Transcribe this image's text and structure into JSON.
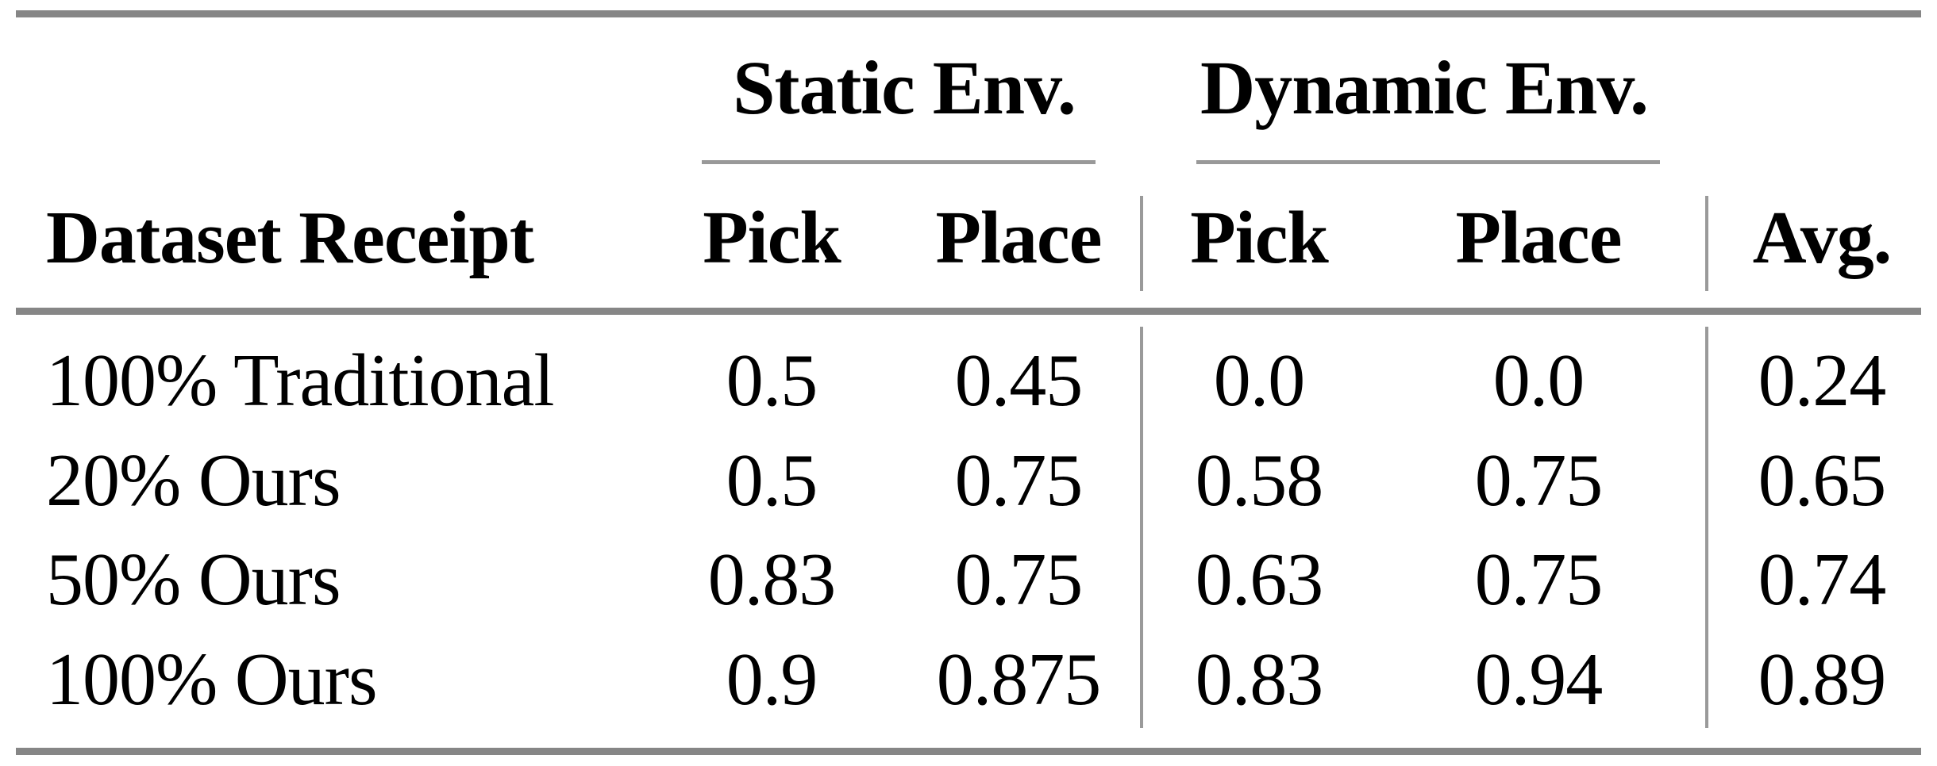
{
  "table": {
    "group_headers": [
      {
        "label": "Static Env."
      },
      {
        "label": "Dynamic Env."
      }
    ],
    "columns": [
      "Dataset Receipt",
      "Pick",
      "Place",
      "Pick",
      "Place",
      "Avg."
    ],
    "rows": [
      {
        "cells": [
          "100% Traditional",
          "0.5",
          "0.45",
          "0.0",
          "0.0",
          "0.24"
        ]
      },
      {
        "cells": [
          "20% Ours",
          "0.5",
          "0.75",
          "0.58",
          "0.75",
          "0.65"
        ]
      },
      {
        "cells": [
          "50% Ours",
          "0.83",
          "0.75",
          "0.63",
          "0.75",
          "0.74"
        ]
      },
      {
        "cells": [
          "100% Ours",
          "0.9",
          "0.875",
          "0.83",
          "0.94",
          "0.89"
        ]
      }
    ],
    "colors": {
      "thick_rule": "#868686",
      "thin_rule": "#999999",
      "text": "#000000",
      "background": "#ffffff"
    }
  },
  "chart_data": {
    "type": "table",
    "title": "",
    "column_groups": [
      "Static Env.",
      "Dynamic Env."
    ],
    "categories": [
      "100% Traditional",
      "20% Ours",
      "50% Ours",
      "100% Ours"
    ],
    "series": [
      {
        "name": "Static Env. Pick",
        "values": [
          0.5,
          0.5,
          0.83,
          0.9
        ]
      },
      {
        "name": "Static Env. Place",
        "values": [
          0.45,
          0.75,
          0.75,
          0.875
        ]
      },
      {
        "name": "Dynamic Env. Pick",
        "values": [
          0.0,
          0.58,
          0.63,
          0.83
        ]
      },
      {
        "name": "Dynamic Env. Place",
        "values": [
          0.0,
          0.75,
          0.75,
          0.94
        ]
      },
      {
        "name": "Avg.",
        "values": [
          0.24,
          0.65,
          0.74,
          0.89
        ]
      }
    ]
  }
}
